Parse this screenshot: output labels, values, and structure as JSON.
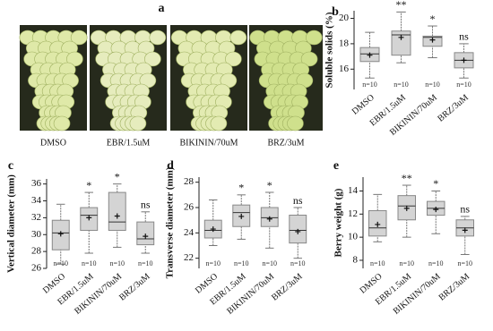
{
  "panel_a": {
    "label": "a",
    "captions": [
      "DMSO",
      "EBR/1.5uM",
      "BIKININ/70uM",
      "BRZ/3uM"
    ]
  },
  "chart_data": [
    {
      "type": "box",
      "panel_label": "b",
      "y_label": "Soluble solids (%)",
      "categories": [
        "DMSO",
        "EBR/1.5uM",
        "BIKININ/70uM",
        "BRZ/3uM"
      ],
      "stats": {
        "min": [
          15.3,
          16.5,
          16.9,
          15.3
        ],
        "q1": [
          16.6,
          17.1,
          17.8,
          16.1
        ],
        "median": [
          17.2,
          18.7,
          18.5,
          16.7
        ],
        "q3": [
          17.7,
          19.0,
          18.6,
          17.3
        ],
        "max": [
          18.9,
          20.5,
          19.4,
          18.0
        ],
        "mean": [
          17.1,
          18.5,
          18.3,
          16.7
        ]
      },
      "annotations": [
        "",
        "**",
        "*",
        "ns"
      ],
      "n_labels": [
        "n=10",
        "n=10",
        "n=10",
        "n=10"
      ],
      "color": "#d4d4d4",
      "ylim": [
        14.4,
        20.6
      ],
      "yticks": [
        16,
        18,
        20
      ]
    },
    {
      "type": "box",
      "panel_label": "c",
      "y_label": "Vertical diameter (mm)",
      "categories": [
        "DMSO",
        "EBR/1.5uM",
        "BIKININ/70uM",
        "BRZ/3uM"
      ],
      "stats": {
        "min": [
          26.5,
          27.8,
          28.5,
          27.8
        ],
        "q1": [
          28.2,
          30.5,
          30.5,
          28.8
        ],
        "median": [
          30.2,
          32.3,
          31.5,
          29.5
        ],
        "q3": [
          31.7,
          33.2,
          35.0,
          31.5
        ],
        "max": [
          33.6,
          35.0,
          36.0,
          32.7
        ],
        "mean": [
          30.1,
          32.0,
          32.2,
          29.8
        ]
      },
      "annotations": [
        "",
        "*",
        "*",
        "ns"
      ],
      "n_labels": [
        "n=10",
        "n=10",
        "n=10",
        "n=10"
      ],
      "color": "#d4d4d4",
      "ylim": [
        26,
        36.6
      ],
      "yticks": [
        26,
        28,
        30,
        32,
        34,
        36
      ]
    },
    {
      "type": "box",
      "panel_label": "d",
      "y_label": "Transverse diameter (mm)",
      "categories": [
        "DMSO",
        "EBR/1.5uM",
        "BIKININ/70uM",
        "BRZ/3uM"
      ],
      "stats": {
        "min": [
          23.0,
          23.5,
          22.8,
          22.0
        ],
        "q1": [
          23.6,
          24.5,
          24.5,
          23.2
        ],
        "median": [
          24.2,
          25.6,
          25.2,
          24.2
        ],
        "q3": [
          25.0,
          26.2,
          26.0,
          25.4
        ],
        "max": [
          26.6,
          27.0,
          27.2,
          26.0
        ],
        "mean": [
          24.3,
          25.3,
          25.1,
          24.1
        ]
      },
      "annotations": [
        "",
        "*",
        "*",
        "ns"
      ],
      "n_labels": [
        "n=10",
        "n=10",
        "n=10",
        "n=10"
      ],
      "color": "#d4d4d4",
      "ylim": [
        21.2,
        28.4
      ],
      "yticks": [
        22,
        24,
        26,
        28
      ]
    },
    {
      "type": "box",
      "panel_label": "e",
      "y_label": "Berry weight (g)",
      "categories": [
        "DMSO",
        "EBR/1.5uM",
        "BIKININ/70uM",
        "BRZ/3uM"
      ],
      "stats": {
        "min": [
          9.6,
          10.0,
          10.3,
          8.5
        ],
        "q1": [
          10.1,
          11.5,
          11.9,
          10.1
        ],
        "median": [
          10.8,
          12.7,
          12.5,
          10.8
        ],
        "q3": [
          12.3,
          13.6,
          13.1,
          11.5
        ],
        "max": [
          13.7,
          14.5,
          14.0,
          11.8
        ],
        "mean": [
          11.1,
          12.5,
          12.4,
          10.6
        ]
      },
      "annotations": [
        "",
        "**",
        "*",
        "ns"
      ],
      "n_labels": [
        "n=10",
        "n=10",
        "n=10",
        "n=10"
      ],
      "color": "#d4d4d4",
      "ylim": [
        7.3,
        15.2
      ],
      "yticks": [
        8,
        10,
        12,
        14
      ]
    }
  ]
}
